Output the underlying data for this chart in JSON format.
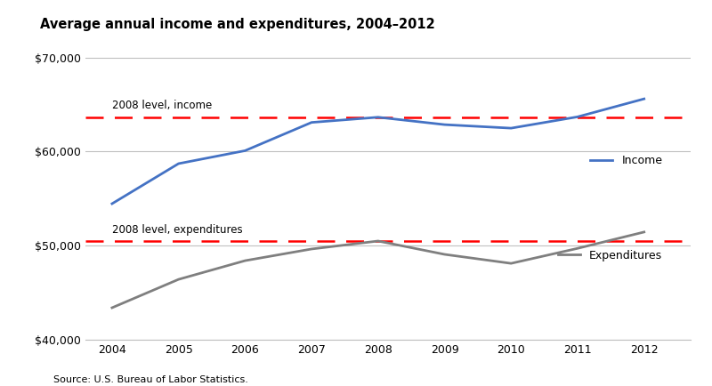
{
  "title": "Average annual income and expenditures, 2004–2012",
  "years": [
    2004,
    2005,
    2006,
    2007,
    2008,
    2009,
    2010,
    2011,
    2012
  ],
  "income": [
    54453,
    58712,
    60088,
    63091,
    63644,
    62857,
    62481,
    63685,
    65596
  ],
  "expenditures": [
    43395,
    46409,
    48398,
    49638,
    50486,
    49067,
    48109,
    49705,
    51442
  ],
  "income_2008_level": 63644,
  "expenditures_2008_level": 50486,
  "income_color": "#4472C4",
  "expenditures_color": "#7F7F7F",
  "reference_line_color": "#FF0000",
  "income_label": "Income",
  "expenditures_label": "Expenditures",
  "income_ref_label": "2008 level, income",
  "expenditures_ref_label": "2008 level, expenditures",
  "source_text": "Source: U.S. Bureau of Labor Statistics.",
  "ylim": [
    40000,
    72000
  ],
  "yticks": [
    40000,
    50000,
    60000,
    70000
  ],
  "background_color": "#FFFFFF",
  "grid_color": "#C0C0C0"
}
